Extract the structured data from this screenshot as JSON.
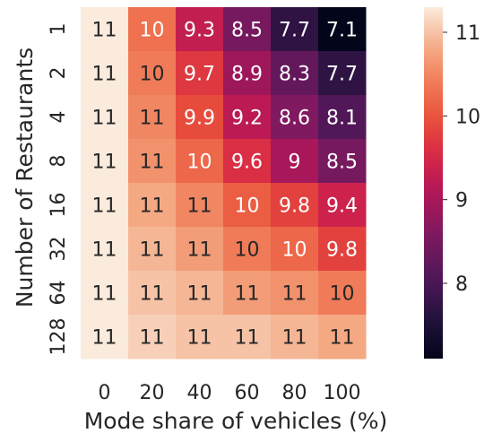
{
  "chart_data": {
    "type": "heatmap",
    "title": "",
    "xlabel": "Mode share of vehicles (%)",
    "ylabel": "Number of Restaurants",
    "x_categories": [
      "0",
      "20",
      "40",
      "60",
      "80",
      "100"
    ],
    "y_categories": [
      "1",
      "2",
      "4",
      "8",
      "16",
      "32",
      "64",
      "128"
    ],
    "values": [
      [
        11.3,
        10.3,
        9.3,
        8.5,
        7.7,
        7.1
      ],
      [
        11.3,
        10.4,
        9.7,
        8.9,
        8.3,
        7.7
      ],
      [
        11.3,
        10.5,
        9.9,
        9.2,
        8.6,
        8.1
      ],
      [
        11.3,
        10.6,
        10.2,
        9.6,
        9.0,
        8.5
      ],
      [
        11.3,
        10.8,
        10.5,
        10.1,
        9.8,
        9.4
      ],
      [
        11.3,
        10.9,
        10.7,
        10.4,
        10.2,
        9.8
      ],
      [
        11.3,
        11.0,
        10.9,
        10.7,
        10.6,
        10.4
      ],
      [
        11.3,
        11.1,
        11.0,
        11.0,
        10.9,
        10.8
      ]
    ],
    "labels": [
      [
        "11",
        "10",
        "9.3",
        "8.5",
        "7.7",
        "7.1"
      ],
      [
        "11",
        "10",
        "9.7",
        "8.9",
        "8.3",
        "7.7"
      ],
      [
        "11",
        "11",
        "9.9",
        "9.2",
        "8.6",
        "8.1"
      ],
      [
        "11",
        "11",
        "10",
        "9.6",
        "9",
        "8.5"
      ],
      [
        "11",
        "11",
        "11",
        "10",
        "9.8",
        "9.4"
      ],
      [
        "11",
        "11",
        "11",
        "10",
        "10",
        "9.8"
      ],
      [
        "11",
        "11",
        "11",
        "11",
        "11",
        "10"
      ],
      [
        "11",
        "11",
        "11",
        "11",
        "11",
        "11"
      ]
    ],
    "colorbar": {
      "range": [
        7.1,
        11.3
      ],
      "ticks": [
        "8",
        "9",
        "10",
        "11"
      ]
    },
    "colormap": "rocket",
    "grid": false
  }
}
